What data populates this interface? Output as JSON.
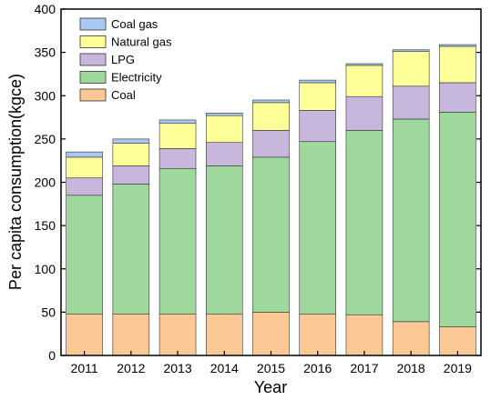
{
  "chart_data": {
    "type": "bar",
    "stacked": true,
    "xlabel": "Year",
    "ylabel": "Per capita consumption(kgce)",
    "ylim": [
      0,
      400
    ],
    "yticks": [
      0,
      50,
      100,
      150,
      200,
      250,
      300,
      350,
      400
    ],
    "categories": [
      "2011",
      "2012",
      "2013",
      "2014",
      "2015",
      "2016",
      "2017",
      "2018",
      "2019"
    ],
    "series": [
      {
        "name": "Coal",
        "color": "#fbc896",
        "values": [
          48,
          48,
          48,
          48,
          50,
          48,
          47,
          39,
          33
        ]
      },
      {
        "name": "Electricity",
        "color": "#9fd89c",
        "values": [
          137,
          150,
          168,
          171,
          179,
          199,
          213,
          234,
          248
        ]
      },
      {
        "name": "LPG",
        "color": "#c7b7dd",
        "values": [
          20,
          21,
          23,
          27,
          31,
          36,
          39,
          38,
          34
        ]
      },
      {
        "name": "Natural gas",
        "color": "#ffff99",
        "values": [
          24,
          26,
          29,
          31,
          32,
          32,
          36,
          40,
          42
        ]
      },
      {
        "name": "Coal gas",
        "color": "#a8c8f2",
        "values": [
          6,
          5,
          4,
          3,
          3,
          3,
          2,
          2,
          2
        ]
      }
    ],
    "legend": {
      "position": "top-left",
      "order": [
        "Coal gas",
        "Natural gas",
        "LPG",
        "Electricity",
        "Coal"
      ]
    },
    "grid": false
  }
}
